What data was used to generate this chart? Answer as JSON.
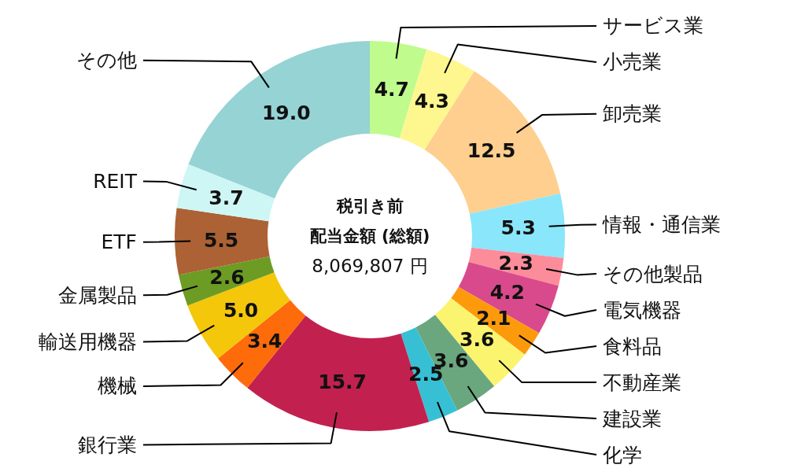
{
  "chart_data": {
    "type": "donut",
    "title": "税引き前",
    "subtitle": "配当金額 (総額)",
    "annotations": [
      "8,069,807 円"
    ],
    "categories": [
      "サービス業",
      "小売業",
      "卸売業",
      "情報・通信業",
      "その他製品",
      "電気機器",
      "食料品",
      "不動産業",
      "建設業",
      "化学",
      "銀行業",
      "機械",
      "輸送用機器",
      "金属製品",
      "ETF",
      "REIT",
      "その他"
    ],
    "values": [
      4.7,
      4.3,
      12.5,
      5.3,
      2.3,
      4.2,
      2.1,
      3.6,
      3.6,
      2.5,
      15.7,
      3.4,
      5.0,
      2.6,
      5.5,
      3.7,
      19.0
    ],
    "value_labels": [
      "4.7",
      "4.3",
      "12.5",
      "5.3",
      "2.3",
      "4.2",
      "2.1",
      "3.6",
      "3.6",
      "2.5",
      "15.7",
      "3.4",
      "5.0",
      "2.6",
      "5.5",
      "3.7",
      "19.0"
    ],
    "colors": [
      "#c0fb8d",
      "#fef68f",
      "#fecf8e",
      "#8ae6fb",
      "#fd8c9b",
      "#d94a8c",
      "#fd9a0c",
      "#faf46f",
      "#6aa67e",
      "#37c0d4",
      "#c2214f",
      "#fe6b0b",
      "#f4c70b",
      "#6c9c23",
      "#ac6234",
      "#cdf6f4",
      "#96d3d4"
    ]
  }
}
